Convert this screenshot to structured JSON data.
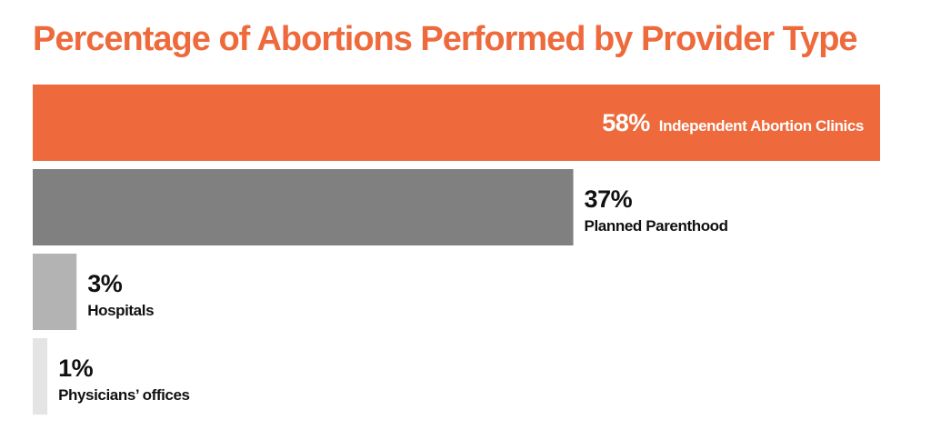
{
  "chart_data": {
    "type": "bar",
    "orientation": "horizontal",
    "title": "Percentage of Abortions Performed by Provider Type",
    "categories": [
      "Independent Abortion Clinics",
      "Planned Parenthood",
      "Hospitals",
      "Physicians’ offices"
    ],
    "values": [
      58,
      37,
      3,
      1
    ],
    "value_labels": [
      "58%",
      "37%",
      "3%",
      "1%"
    ],
    "xlim": [
      0,
      58
    ],
    "grid": false,
    "legend": "none",
    "colors": [
      "#ee6a3c",
      "#808080",
      "#b3b3b3",
      "#e4e4e4"
    ],
    "title_color": "#ee6a3c",
    "inside_label_color": "#ffffff",
    "outside_label_color": "#111111"
  }
}
